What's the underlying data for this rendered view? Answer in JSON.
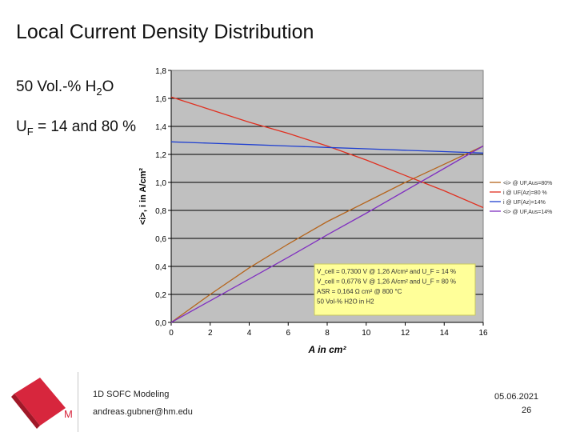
{
  "slide": {
    "title": "Local Current Density Distribution",
    "cond1_pre": "50 Vol.-% H",
    "cond1_sub": "2",
    "cond1_post": "O",
    "cond2_pre": "U",
    "cond2_sub": "F",
    "cond2_post": " = 14 and 80 %"
  },
  "footer": {
    "title": "1D SOFC Modeling",
    "email": "andreas.gubner@hm.edu",
    "date": "05.06.2021",
    "page": "26"
  },
  "logo": {
    "text": "M",
    "color": "#d7263d"
  },
  "chart_data": {
    "type": "line",
    "xlabel": "A in cm²",
    "ylabel": "<i>, i in A/cm²",
    "xlim": [
      0,
      16
    ],
    "ylim": [
      0,
      1.8
    ],
    "xticks": [
      "0",
      "2",
      "4",
      "6",
      "8",
      "10",
      "12",
      "14",
      "16"
    ],
    "yticks": [
      "0,0",
      "0,2",
      "0,4",
      "0,6",
      "0,8",
      "1,0",
      "1,2",
      "1,4",
      "1,6",
      "1,8"
    ],
    "grid": true,
    "legend_position": "right",
    "series": [
      {
        "name": "<i> @ UF,Aus=80%",
        "color": "#b5651d",
        "x": [
          0,
          2,
          4,
          6,
          8,
          10,
          12,
          14,
          16
        ],
        "y": [
          0,
          0.2,
          0.39,
          0.56,
          0.72,
          0.86,
          1.0,
          1.13,
          1.26
        ]
      },
      {
        "name": "i @ UF(Az)=80 %",
        "color": "#e03020",
        "x": [
          0,
          2,
          4,
          6,
          8,
          10,
          12,
          14,
          16
        ],
        "y": [
          1.61,
          1.52,
          1.43,
          1.35,
          1.26,
          1.16,
          1.05,
          0.94,
          0.82
        ]
      },
      {
        "name": "i @ UF(Az)=14%",
        "color": "#2040d0",
        "x": [
          0,
          2,
          4,
          6,
          8,
          10,
          12,
          14,
          16
        ],
        "y": [
          1.29,
          1.28,
          1.27,
          1.26,
          1.25,
          1.24,
          1.23,
          1.22,
          1.21
        ]
      },
      {
        "name": "<i> @ UF,Aus=14%",
        "color": "#8030c0",
        "x": [
          0,
          2,
          4,
          6,
          8,
          10,
          12,
          14,
          16
        ],
        "y": [
          0,
          0.155,
          0.31,
          0.465,
          0.625,
          0.78,
          0.94,
          1.1,
          1.26
        ]
      }
    ],
    "annotation": {
      "lines": [
        "V_cell = 0,7300 V @ 1,26 A/cm² and U_F = 14 %",
        "V_cell = 0,6776 V @ 1,26 A/cm² and U_F = 80 %",
        "ASR = 0,164 Ω cm² @ 800 °C",
        "50 Vol-% H2O in H2"
      ],
      "bg": "#ffff99"
    },
    "plot_bg": "#c0c0c0"
  }
}
